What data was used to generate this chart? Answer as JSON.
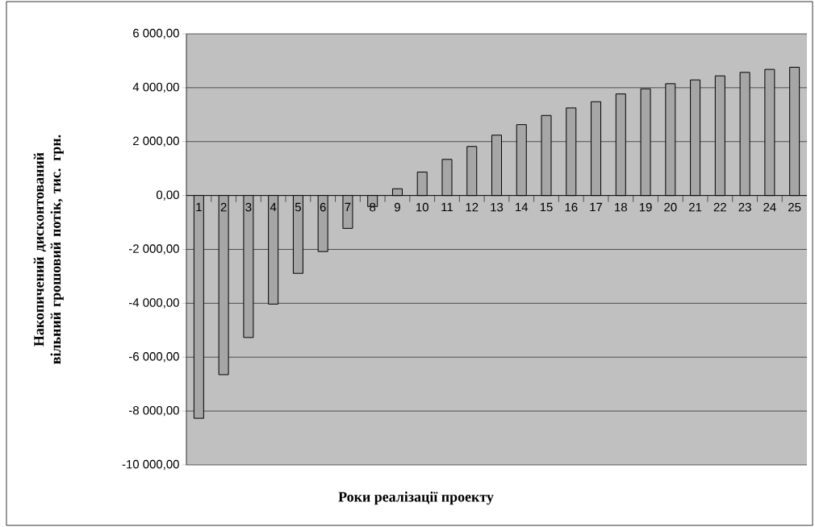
{
  "chart_data": {
    "type": "bar",
    "xlabel": "Роки реалізації проекту",
    "ylabel": "Накопичений дисконтований вільний грошовий потік, тис. грн.",
    "categories": [
      "1",
      "2",
      "3",
      "4",
      "5",
      "6",
      "7",
      "8",
      "9",
      "10",
      "11",
      "12",
      "13",
      "14",
      "15",
      "16",
      "17",
      "18",
      "19",
      "20",
      "21",
      "22",
      "23",
      "24",
      "25"
    ],
    "values": [
      -8270,
      -6650,
      -5270,
      -4030,
      -2890,
      -2080,
      -1220,
      -410,
      250,
      870,
      1340,
      1820,
      2240,
      2630,
      2970,
      3250,
      3480,
      3770,
      3960,
      4150,
      4290,
      4440,
      4570,
      4680,
      4760
    ],
    "color": "#a6a6a6",
    "ylim": [
      -10000,
      6000
    ],
    "yticks": [
      {
        "value": -10000,
        "label": "-10 000,00"
      },
      {
        "value": -8000,
        "label": "-8 000,00"
      },
      {
        "value": -6000,
        "label": "-6 000,00"
      },
      {
        "value": -4000,
        "label": "-4 000,00"
      },
      {
        "value": -2000,
        "label": "-2 000,00"
      },
      {
        "value": 0,
        "label": "0,00"
      },
      {
        "value": 2000,
        "label": "2 000,00"
      },
      {
        "value": 4000,
        "label": "4 000,00"
      },
      {
        "value": 6000,
        "label": "6 000,00"
      }
    ],
    "grid": "y"
  }
}
